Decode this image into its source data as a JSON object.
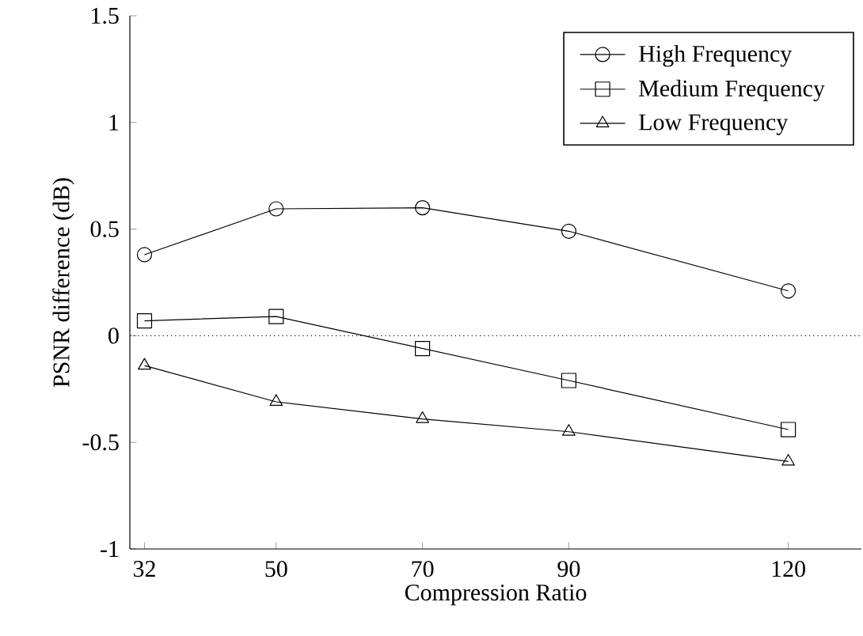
{
  "chart_data": {
    "type": "line",
    "xlabel": "Compression Ratio",
    "ylabel": "PSNR difference (dB)",
    "x": [
      32,
      50,
      70,
      90,
      120
    ],
    "xlim": [
      30,
      130
    ],
    "xticks": [
      32,
      50,
      70,
      90,
      120
    ],
    "ylim": [
      -1,
      1.5
    ],
    "yticks": [
      -1,
      -0.5,
      0,
      0.5,
      1,
      1.5
    ],
    "series": [
      {
        "name": "High Frequency",
        "color": "#000000",
        "marker": "circle",
        "values": [
          0.38,
          0.595,
          0.6,
          0.49,
          0.21
        ]
      },
      {
        "name": "Medium Frequency",
        "color": "#000000",
        "marker": "square",
        "values": [
          0.07,
          0.09,
          -0.06,
          -0.21,
          -0.44
        ]
      },
      {
        "name": "Low Frequency",
        "color": "#000000",
        "marker": "triangle",
        "values": [
          -0.14,
          -0.31,
          -0.39,
          -0.45,
          -0.59
        ]
      }
    ],
    "ref_lines": [
      {
        "axis": "y",
        "value": 0,
        "line_style": "dotted",
        "color": "#000000"
      }
    ],
    "legend": "top right",
    "grid": false,
    "line_style": "solid"
  }
}
